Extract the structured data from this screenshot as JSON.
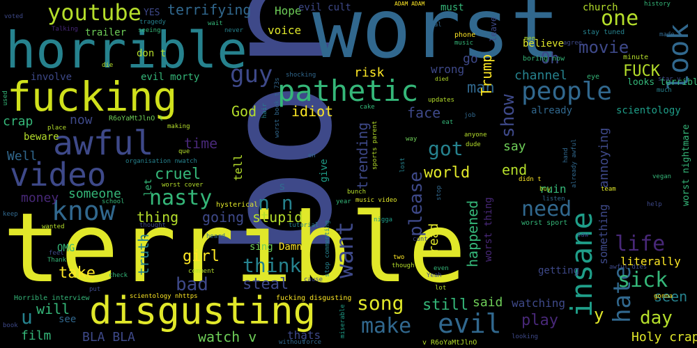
{
  "title": "Negative comments word cloud",
  "colors": {
    "background": "#000000",
    "palette": [
      "#fde725",
      "#b5de2b",
      "#6ece58",
      "#35b779",
      "#1f9e89",
      "#26828e",
      "#31688e",
      "#3e4989",
      "#482878",
      "#440154"
    ]
  },
  "words": [
    {
      "text": "boring",
      "color": "#3e4989"
    },
    {
      "text": "terrible",
      "color": "#e1e82a"
    },
    {
      "text": "worst",
      "color": "#31688e"
    },
    {
      "text": "horrible",
      "color": "#26828e"
    },
    {
      "text": "fucking",
      "color": "#d0e11c"
    },
    {
      "text": "disgusting",
      "color": "#e1e82a"
    },
    {
      "text": "pathetic",
      "color": "#35b779"
    },
    {
      "text": "insane",
      "color": "#1f9e89"
    },
    {
      "text": "video",
      "color": "#3e4989"
    },
    {
      "text": "awful",
      "color": "#3e4989"
    },
    {
      "text": "know",
      "color": "#31688e"
    },
    {
      "text": "evil",
      "color": "#31688e"
    },
    {
      "text": "people",
      "color": "#31688e"
    },
    {
      "text": "look",
      "color": "#31688e"
    },
    {
      "text": "hate",
      "color": "#31688e"
    },
    {
      "text": "youtube",
      "color": "#b5de2b"
    },
    {
      "text": "terrifying",
      "color": "#31688e"
    },
    {
      "text": "one",
      "color": "#b5de2b"
    },
    {
      "text": "movie",
      "color": "#3e4989"
    },
    {
      "text": "guy",
      "color": "#3e4989"
    },
    {
      "text": "want",
      "color": "#3e4989"
    },
    {
      "text": "please",
      "color": "#3e4989"
    },
    {
      "text": "nasty",
      "color": "#35b779"
    },
    {
      "text": "n n",
      "color": "#26828e"
    },
    {
      "text": "think",
      "color": "#26828e"
    },
    {
      "text": "make",
      "color": "#31688e"
    },
    {
      "text": "song",
      "color": "#e1e82a"
    },
    {
      "text": "need",
      "color": "#31688e"
    },
    {
      "text": "got",
      "color": "#26828e"
    },
    {
      "text": "sick",
      "color": "#35b779"
    },
    {
      "text": "life",
      "color": "#482878"
    },
    {
      "text": "day",
      "color": "#b5de2b"
    },
    {
      "text": "show",
      "color": "#3e4989"
    },
    {
      "text": "man",
      "color": "#31688e"
    },
    {
      "text": "FUCK",
      "color": "#b5de2b"
    },
    {
      "text": "Oh",
      "color": "#3e4989"
    },
    {
      "text": "bad",
      "color": "#3e4989"
    },
    {
      "text": "steal",
      "color": "#3e4989"
    },
    {
      "text": "u",
      "color": "#26828e"
    },
    {
      "text": "film",
      "color": "#35b779"
    },
    {
      "text": "watch v",
      "color": "#6ece58"
    },
    {
      "text": "BLA BLA",
      "color": "#3e4989"
    },
    {
      "text": "thats",
      "color": "#3e4989"
    },
    {
      "text": "Holy crap",
      "color": "#e1e82a"
    },
    {
      "text": "play",
      "color": "#482878"
    },
    {
      "text": "still",
      "color": "#35b779"
    },
    {
      "text": "said",
      "color": "#6ece58"
    },
    {
      "text": "watching",
      "color": "#3e4989"
    },
    {
      "text": "seen",
      "color": "#26828e"
    },
    {
      "text": "y",
      "color": "#e1e82a"
    },
    {
      "text": "will",
      "color": "#35b779"
    },
    {
      "text": "take",
      "color": "#fde725"
    },
    {
      "text": "truth",
      "color": "#26828e"
    },
    {
      "text": "girl",
      "color": "#fde725"
    },
    {
      "text": "going",
      "color": "#3e4989"
    },
    {
      "text": "stupid",
      "color": "#b5de2b"
    },
    {
      "text": "thing",
      "color": "#b5de2b"
    },
    {
      "text": "cruel",
      "color": "#35b779"
    },
    {
      "text": "world",
      "color": "#e1e82a"
    },
    {
      "text": "end",
      "color": "#b5de2b"
    },
    {
      "text": "say",
      "color": "#6ece58"
    },
    {
      "text": "time",
      "color": "#482878"
    },
    {
      "text": "someone",
      "color": "#35b779"
    },
    {
      "text": "money",
      "color": "#482878"
    },
    {
      "text": "Well",
      "color": "#31688e"
    },
    {
      "text": "crap",
      "color": "#35b779"
    },
    {
      "text": "now",
      "color": "#3e4989"
    },
    {
      "text": "idiot",
      "color": "#fde725"
    },
    {
      "text": "God",
      "color": "#b5de2b"
    },
    {
      "text": "face",
      "color": "#3e4989"
    },
    {
      "text": "trending",
      "color": "#3e4989"
    },
    {
      "text": "Trump",
      "color": "#fde725"
    },
    {
      "text": "risk",
      "color": "#fde725"
    },
    {
      "text": "wrong",
      "color": "#3e4989"
    },
    {
      "text": "go",
      "color": "#3e4989"
    },
    {
      "text": "channel",
      "color": "#26828e"
    },
    {
      "text": "already",
      "color": "#31688e"
    },
    {
      "text": "scientology",
      "color": "#1f9e89"
    },
    {
      "text": "annoying",
      "color": "#3e4989"
    },
    {
      "text": "ruin",
      "color": "#35b779"
    },
    {
      "text": "something",
      "color": "#3e4989"
    },
    {
      "text": "literally",
      "color": "#fde725"
    },
    {
      "text": "getting",
      "color": "#3e4989"
    },
    {
      "text": "happened",
      "color": "#35b779"
    },
    {
      "text": "read",
      "color": "#e1e82a"
    },
    {
      "text": "worst thing",
      "color": "#482878"
    },
    {
      "text": "Hope",
      "color": "#6ece58"
    },
    {
      "text": "voice",
      "color": "#e1e82a"
    },
    {
      "text": "trailer",
      "color": "#6ece58"
    },
    {
      "text": "don t",
      "color": "#b5de2b"
    },
    {
      "text": "involve",
      "color": "#3e4989"
    },
    {
      "text": "evil morty",
      "color": "#35b779"
    },
    {
      "text": "beware",
      "color": "#b5de2b"
    },
    {
      "text": "OMG",
      "color": "#35b779"
    },
    {
      "text": "Damn",
      "color": "#fde725"
    },
    {
      "text": "sing",
      "color": "#6ece58"
    },
    {
      "text": "tell",
      "color": "#b5de2b"
    },
    {
      "text": "s",
      "color": "#31688e"
    },
    {
      "text": "let",
      "color": "#35b779"
    },
    {
      "text": "give",
      "color": "#1f9e89"
    },
    {
      "text": "YES",
      "color": "#3e4989"
    },
    {
      "text": "evil cult",
      "color": "#3e4989"
    },
    {
      "text": "must",
      "color": "#35b779"
    },
    {
      "text": "believe",
      "color": "#e1e82a"
    },
    {
      "text": "church",
      "color": "#b5de2b"
    },
    {
      "text": "boring now",
      "color": "#35b779"
    },
    {
      "text": "looks terrible",
      "color": "#35b779"
    },
    {
      "text": "worst nightmare",
      "color": "#35b779"
    },
    {
      "text": "worst cover",
      "color": "#b5de2b"
    },
    {
      "text": "hysterical",
      "color": "#e1e82a"
    },
    {
      "text": "worst sport",
      "color": "#35b779"
    },
    {
      "text": "scientology nhttps",
      "color": "#fde725"
    },
    {
      "text": "fucking disgusting",
      "color": "#fde725"
    },
    {
      "text": "Horrible interview",
      "color": "#35b779"
    },
    {
      "text": "music video",
      "color": "#e1e82a"
    },
    {
      "text": "stop commenting",
      "color": "#26828e"
    },
    {
      "text": "worst book t 73s",
      "color": "#31688e"
    },
    {
      "text": "sports parent",
      "color": "#b5de2b"
    },
    {
      "text": "organisation nwatch",
      "color": "#26828e"
    },
    {
      "text": "R6oYaMtJlnO t",
      "color": "#6ece58"
    },
    {
      "text": "v R6oYaMtJlnO",
      "color": "#b5de2b"
    },
    {
      "text": "ADAM ADAM",
      "color": "#fde725"
    },
    {
      "text": "history",
      "color": "#35b779"
    },
    {
      "text": "made",
      "color": "#31688e"
    },
    {
      "text": "stay tuned",
      "color": "#26828e"
    },
    {
      "text": "minute",
      "color": "#b5de2b"
    },
    {
      "text": "star v",
      "color": "#3e4989"
    },
    {
      "text": "eye",
      "color": "#35b779"
    },
    {
      "text": "much",
      "color": "#26828e"
    },
    {
      "text": "men",
      "color": "#b5de2b"
    },
    {
      "text": "agree",
      "color": "#3e4989"
    },
    {
      "text": "phone",
      "color": "#fde725"
    },
    {
      "text": "music",
      "color": "#35b779"
    },
    {
      "text": "leave",
      "color": "#3e4989"
    },
    {
      "text": "real",
      "color": "#31688e"
    },
    {
      "text": "wait",
      "color": "#35b779"
    },
    {
      "text": "never",
      "color": "#26828e"
    },
    {
      "text": "tragedy",
      "color": "#26828e"
    },
    {
      "text": "seeing",
      "color": "#35b779"
    },
    {
      "text": "Talking",
      "color": "#482878"
    },
    {
      "text": "voted",
      "color": "#3e4989"
    },
    {
      "text": "die",
      "color": "#b5de2b"
    },
    {
      "text": "shocking",
      "color": "#31688e"
    },
    {
      "text": "died",
      "color": "#b5de2b"
    },
    {
      "text": "updates",
      "color": "#b5de2b"
    },
    {
      "text": "cake",
      "color": "#35b779"
    },
    {
      "text": "job",
      "color": "#31688e"
    },
    {
      "text": "eat",
      "color": "#35b779"
    },
    {
      "text": "dude",
      "color": "#b5de2b"
    },
    {
      "text": "way",
      "color": "#6ece58"
    },
    {
      "text": "anyone",
      "color": "#b5de2b"
    },
    {
      "text": "hand",
      "color": "#31688e"
    },
    {
      "text": "didn t",
      "color": "#fde725"
    },
    {
      "text": "already awful",
      "color": "#31688e"
    },
    {
      "text": "vegan",
      "color": "#35b779"
    },
    {
      "text": "team",
      "color": "#e1e82a"
    },
    {
      "text": "help",
      "color": "#3e4989"
    },
    {
      "text": "saw",
      "color": "#3e4989"
    },
    {
      "text": "awful dies",
      "color": "#3e4989"
    },
    {
      "text": "bunch",
      "color": "#b5de2b"
    },
    {
      "text": "lost",
      "color": "#26828e"
    },
    {
      "text": "stop",
      "color": "#31688e"
    },
    {
      "text": "buy",
      "color": "#b5de2b"
    },
    {
      "text": "listen",
      "color": "#31688e"
    },
    {
      "text": "two",
      "color": "#fde725"
    },
    {
      "text": "though",
      "color": "#b5de2b"
    },
    {
      "text": "cunt",
      "color": "#3e4989"
    },
    {
      "text": "even",
      "color": "#35b779"
    },
    {
      "text": "Yeah",
      "color": "#3e4989"
    },
    {
      "text": "lot",
      "color": "#b5de2b"
    },
    {
      "text": "cause",
      "color": "#3e4989"
    },
    {
      "text": "tutorial",
      "color": "#26828e"
    },
    {
      "text": "nigga",
      "color": "#1f9e89"
    },
    {
      "text": "year",
      "color": "#35b779"
    },
    {
      "text": "miserable",
      "color": "#1f9e89"
    },
    {
      "text": "force",
      "color": "#31688e"
    },
    {
      "text": "without",
      "color": "#31688e"
    },
    {
      "text": "looking",
      "color": "#3e4989"
    },
    {
      "text": "gonna",
      "color": "#fde725"
    },
    {
      "text": "hair",
      "color": "#26828e"
    },
    {
      "text": "en",
      "color": "#31688e"
    },
    {
      "text": "que",
      "color": "#b5de2b"
    },
    {
      "text": "place",
      "color": "#b5de2b"
    },
    {
      "text": "making",
      "color": "#b5de2b"
    },
    {
      "text": "used",
      "color": "#35b779"
    },
    {
      "text": "keep",
      "color": "#31688e"
    },
    {
      "text": "school",
      "color": "#35b779"
    },
    {
      "text": "wanted",
      "color": "#b5de2b"
    },
    {
      "text": "thought",
      "color": "#3e4989"
    },
    {
      "text": "heard",
      "color": "#31688e"
    },
    {
      "text": "feel",
      "color": "#3e4989"
    },
    {
      "text": "Thank",
      "color": "#35b779"
    },
    {
      "text": "put",
      "color": "#3e4989"
    },
    {
      "text": "comment",
      "color": "#b5de2b"
    },
    {
      "text": "check",
      "color": "#35b779"
    },
    {
      "text": "book",
      "color": "#3e4989"
    },
    {
      "text": "see",
      "color": "#31688e"
    }
  ]
}
